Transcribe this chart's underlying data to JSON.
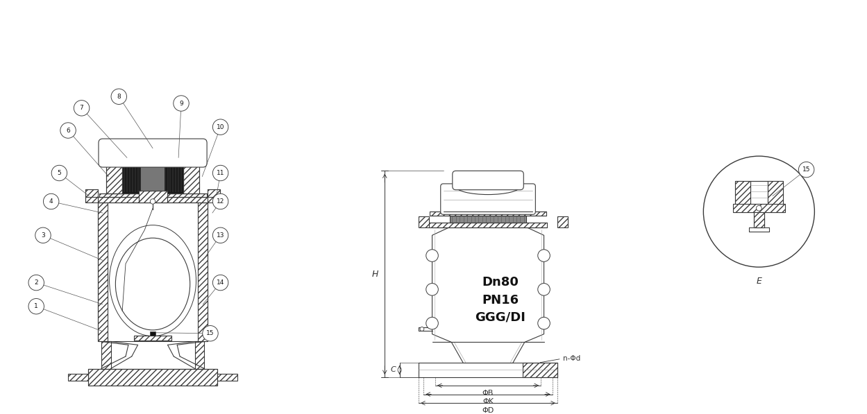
{
  "background_color": "#ffffff",
  "lc": "#3a3a3a",
  "lw": 0.8,
  "fig_width": 12.49,
  "fig_height": 5.97,
  "text_dn80": "Dn80",
  "text_pn16": "PN16",
  "text_ggg": "GGG/DI",
  "label_H": "H",
  "label_C": "C",
  "label_nPhid": "n-Φd",
  "label_PhiB": "ΦB",
  "label_PhiK": "ΦK",
  "label_PhiD": "ΦD",
  "label_E": "E"
}
